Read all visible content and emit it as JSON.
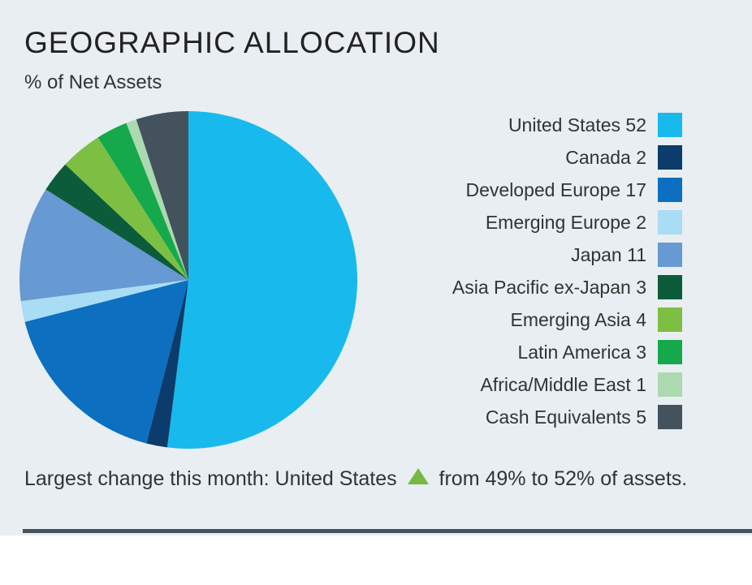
{
  "header": {
    "title": "GEOGRAPHIC ALLOCATION",
    "subtitle": "% of Net Assets"
  },
  "chart_data": {
    "type": "pie",
    "title": "GEOGRAPHIC ALLOCATION",
    "subtitle": "% of Net Assets",
    "legend_position": "right",
    "start_angle_deg": 0,
    "direction": "clockwise",
    "slices": [
      {
        "label": "United States",
        "value": 52,
        "color": "#18b9ed"
      },
      {
        "label": "Canada",
        "value": 2,
        "color": "#0b3c6b"
      },
      {
        "label": "Developed Europe",
        "value": 17,
        "color": "#0c6fc0"
      },
      {
        "label": "Emerging Europe",
        "value": 2,
        "color": "#a9dcf5"
      },
      {
        "label": "Japan",
        "value": 11,
        "color": "#6799d2"
      },
      {
        "label": "Asia Pacific ex-Japan",
        "value": 3,
        "color": "#0c5c3b"
      },
      {
        "label": "Emerging Asia",
        "value": 4,
        "color": "#7dbf43"
      },
      {
        "label": "Latin America",
        "value": 3,
        "color": "#16a94c"
      },
      {
        "label": "Africa/Middle East",
        "value": 1,
        "color": "#acd9b0"
      },
      {
        "label": "Cash Equivalents",
        "value": 5,
        "color": "#44525e"
      }
    ]
  },
  "footnote": {
    "prefix": "Largest change this month: United States",
    "change_icon": "triangle-up-icon",
    "change_color": "#77b843",
    "suffix": "from 49% to 52% of assets."
  }
}
